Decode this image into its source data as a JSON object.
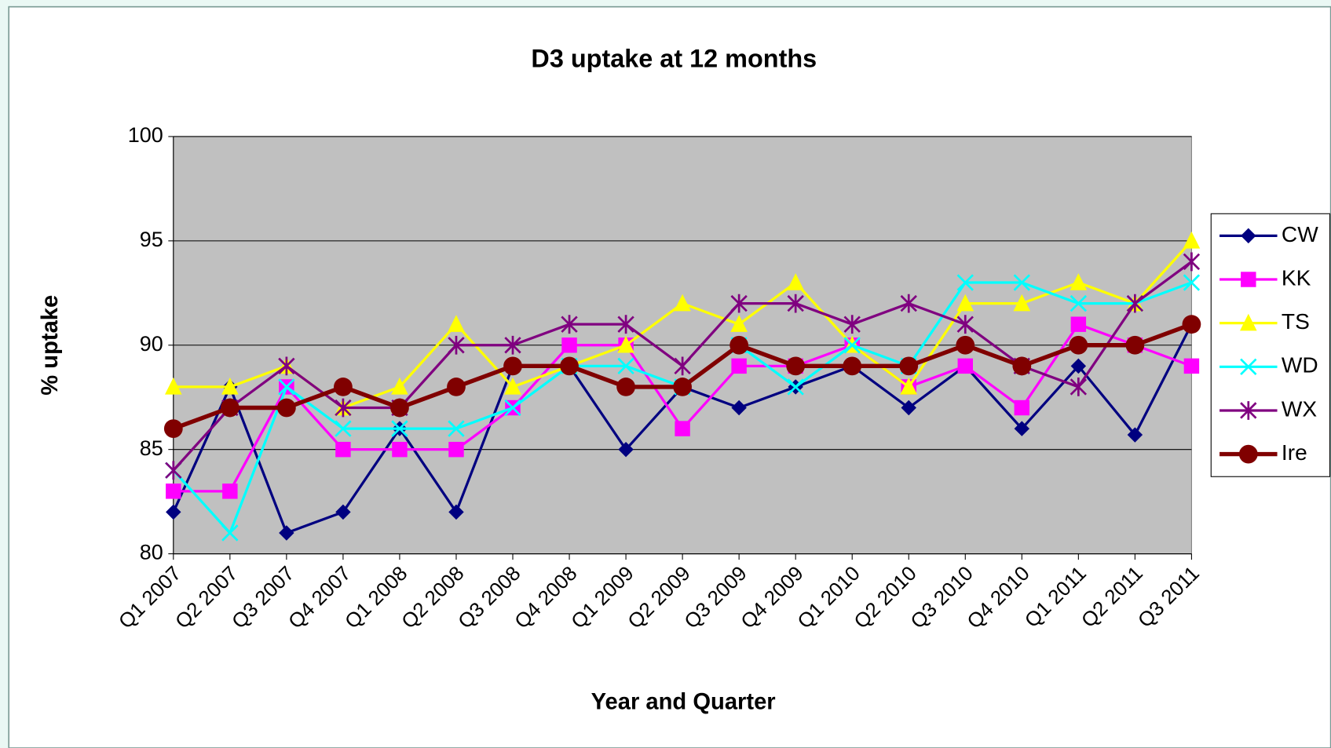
{
  "chart_data": {
    "type": "line",
    "title": "D3 uptake at 12 months",
    "x_label": "Year and Quarter",
    "y_label": "% uptake",
    "categories": [
      "Q1 2007",
      "Q2 2007",
      "Q3 2007",
      "Q4 2007",
      "Q1 2008",
      "Q2 2008",
      "Q3 2008",
      "Q4 2008",
      "Q1 2009",
      "Q2 2009",
      "Q3 2009",
      "Q4 2009",
      "Q1 2010",
      "Q2 2010",
      "Q3 2010",
      "Q4 2010",
      "Q1 2011",
      "Q2 2011",
      "Q3 2011"
    ],
    "series": [
      {
        "name": "CW",
        "color": "#000080",
        "marker": "diamond",
        "values": [
          82,
          88,
          81,
          82,
          86,
          82,
          89,
          89,
          85,
          88,
          87,
          88,
          89,
          87,
          89,
          86,
          89,
          85.7,
          91
        ]
      },
      {
        "name": "KK",
        "color": "#ff00ff",
        "marker": "square",
        "values": [
          83,
          83,
          88,
          85,
          85,
          85,
          87,
          90,
          90,
          86,
          89,
          89,
          90,
          88,
          89,
          87,
          91,
          90,
          89
        ]
      },
      {
        "name": "TS",
        "color": "#ffff00",
        "marker": "triangle",
        "values": [
          88,
          88,
          89,
          87,
          88,
          91,
          88,
          89,
          90,
          92,
          91,
          93,
          90,
          88,
          92,
          92,
          93,
          92,
          95
        ]
      },
      {
        "name": "WD",
        "color": "#00ffff",
        "marker": "x",
        "values": [
          84,
          81,
          88,
          86,
          86,
          86,
          87,
          89,
          89,
          88,
          90,
          88,
          90,
          89,
          93,
          93,
          92,
          92,
          93
        ]
      },
      {
        "name": "WX",
        "color": "#800080",
        "marker": "star",
        "values": [
          84,
          87,
          89,
          87,
          87,
          90,
          90,
          91,
          91,
          89,
          92,
          92,
          91,
          92,
          91,
          89,
          88,
          92,
          94
        ]
      },
      {
        "name": "Ire",
        "color": "#800000",
        "marker": "circle",
        "values": [
          86,
          87,
          87,
          88,
          87,
          88,
          89,
          89,
          88,
          88,
          90,
          89,
          89,
          89,
          90,
          89,
          90,
          90,
          91
        ]
      }
    ],
    "ylim": [
      80,
      100
    ],
    "yticks": [
      80,
      85,
      90,
      95,
      100
    ],
    "grid": true,
    "legend": "right"
  }
}
